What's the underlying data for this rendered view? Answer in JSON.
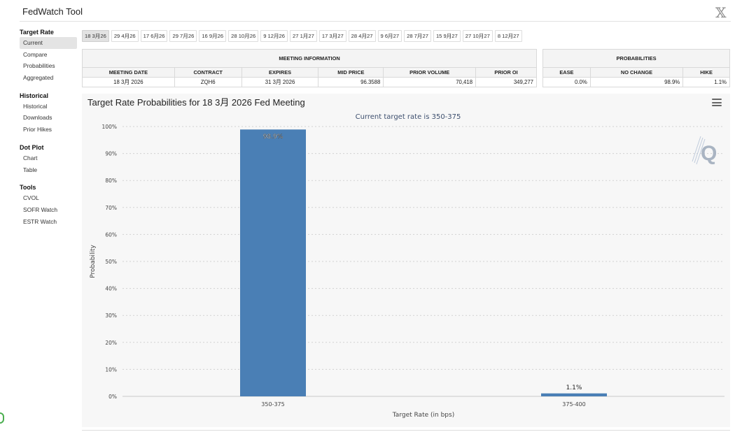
{
  "app": {
    "title": "FedWatch Tool",
    "close_glyph": "𝕏"
  },
  "sidebar": {
    "sections": [
      {
        "title": "Target Rate",
        "items": [
          {
            "label": "Current",
            "active": true
          },
          {
            "label": "Compare"
          },
          {
            "label": "Probabilities"
          },
          {
            "label": "Aggregated"
          }
        ]
      },
      {
        "title": "Historical",
        "items": [
          {
            "label": "Historical"
          },
          {
            "label": "Downloads"
          },
          {
            "label": "Prior Hikes"
          }
        ]
      },
      {
        "title": "Dot Plot",
        "items": [
          {
            "label": "Chart"
          },
          {
            "label": "Table"
          }
        ]
      },
      {
        "title": "Tools",
        "items": [
          {
            "label": "CVOL"
          },
          {
            "label": "SOFR Watch"
          },
          {
            "label": "ESTR Watch"
          }
        ]
      }
    ]
  },
  "tabs": [
    "18 3月26",
    "29 4月26",
    "17 6月26",
    "29 7月26",
    "16 9月26",
    "28 10月26",
    "9 12月26",
    "27 1月27",
    "17 3月27",
    "28 4月27",
    "9 6月27",
    "28 7月27",
    "15 9月27",
    "27 10月27",
    "8 12月27"
  ],
  "active_tab": 0,
  "meeting_info": {
    "title": "MEETING INFORMATION",
    "headers": [
      "MEETING DATE",
      "CONTRACT",
      "EXPIRES",
      "MID PRICE",
      "PRIOR VOLUME",
      "PRIOR OI"
    ],
    "row": [
      "18 3月 2026",
      "ZQH6",
      "31 3月 2026",
      "96.3588",
      "70,418",
      "349,277"
    ]
  },
  "probabilities": {
    "title": "PROBABILITIES",
    "headers": [
      "EASE",
      "NO CHANGE",
      "HIKE"
    ],
    "row": [
      "0.0%",
      "98.9%",
      "1.1%"
    ]
  },
  "chart_data": {
    "type": "bar",
    "title": "Target Rate Probabilities for 18 3月 2026 Fed Meeting",
    "subtitle": "Current target rate is 350-375",
    "xlabel": "Target Rate (in bps)",
    "ylabel": "Probability",
    "categories": [
      "350-375",
      "375-400"
    ],
    "values": [
      98.9,
      1.1
    ],
    "data_labels": [
      "98.9%",
      "1.1%"
    ],
    "ylim": [
      0,
      100
    ],
    "yticks": [
      0,
      10,
      20,
      30,
      40,
      50,
      60,
      70,
      80,
      90,
      100
    ],
    "ytick_labels": [
      "0%",
      "10%",
      "20%",
      "30%",
      "40%",
      "50%",
      "60%",
      "70%",
      "80%",
      "90%",
      "100%"
    ],
    "grid": true,
    "bar_color": "#4a7fb5",
    "legend": "none"
  },
  "colors": {
    "bar": "#4a7fb5",
    "subtitle": "#3d4f6e",
    "panel": "#f7f7f7"
  },
  "icons": {
    "menu": "hamburger-menu-icon",
    "watermark": "q-logo"
  }
}
